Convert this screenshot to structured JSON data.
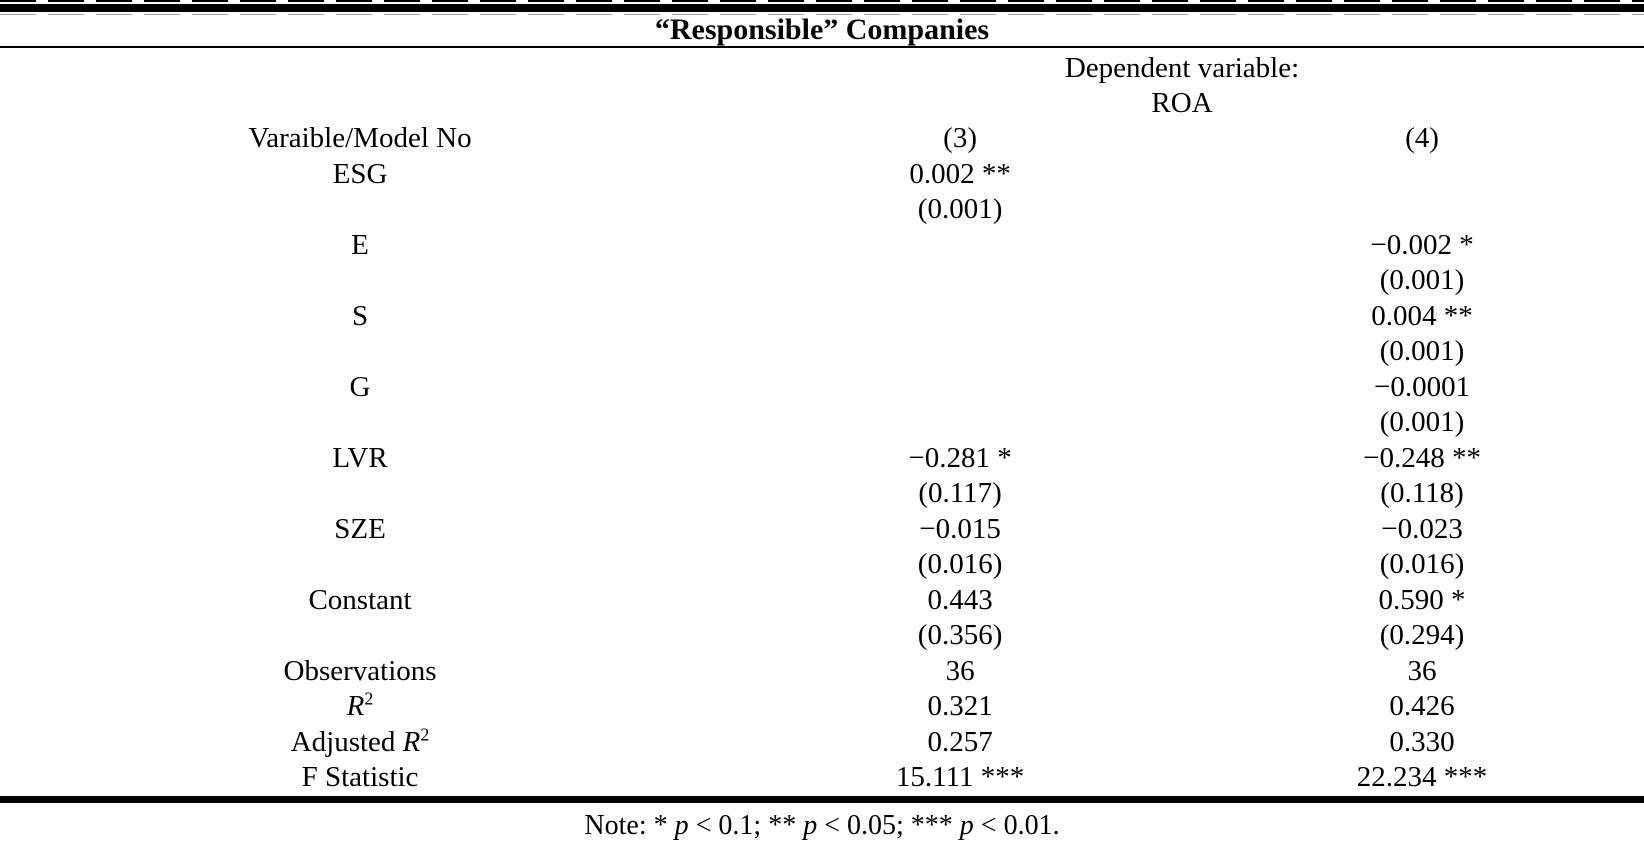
{
  "table": {
    "title": "“Responsible” Companies",
    "header": {
      "dependent_variable_label": "Dependent variable:",
      "dependent_variable": "ROA"
    },
    "columns_row": {
      "label": "Varaible/Model No",
      "model3": "(3)",
      "model4": "(4)"
    },
    "rows": [
      {
        "label": "ESG",
        "m3": "0.002 **",
        "m4": ""
      },
      {
        "label": "",
        "m3": "(0.001)",
        "m4": ""
      },
      {
        "label": "E",
        "m3": "",
        "m4": "−0.002 *"
      },
      {
        "label": "",
        "m3": "",
        "m4": "(0.001)"
      },
      {
        "label": "S",
        "m3": "",
        "m4": "0.004 **"
      },
      {
        "label": "",
        "m3": "",
        "m4": "(0.001)"
      },
      {
        "label": "G",
        "m3": "",
        "m4": "−0.0001"
      },
      {
        "label": "",
        "m3": "",
        "m4": "(0.001)"
      },
      {
        "label": "LVR",
        "m3": "−0.281 *",
        "m4": "−0.248 **"
      },
      {
        "label": "",
        "m3": "(0.117)",
        "m4": "(0.118)"
      },
      {
        "label": "SZE",
        "m3": "−0.015",
        "m4": "−0.023"
      },
      {
        "label": "",
        "m3": "(0.016)",
        "m4": "(0.016)"
      },
      {
        "label": "Constant",
        "m3": "0.443",
        "m4": "0.590 *"
      },
      {
        "label": "",
        "m3": "(0.356)",
        "m4": "(0.294)"
      },
      {
        "label": "Observations",
        "m3": "36",
        "m4": "36"
      },
      {
        "label": {
          "pre": "",
          "it": "R",
          "sup": "2"
        },
        "m3": "0.321",
        "m4": "0.426"
      },
      {
        "label": {
          "pre": "Adjusted ",
          "it": "R",
          "sup": "2"
        },
        "m3": "0.257",
        "m4": "0.330"
      },
      {
        "label": "F Statistic",
        "m3": "15.111 ***",
        "m4": "22.234 ***"
      }
    ],
    "note_segments": [
      {
        "t": "Note: * "
      },
      {
        "t": "p",
        "i": true
      },
      {
        "t": " < 0.1; ** "
      },
      {
        "t": "p",
        "i": true
      },
      {
        "t": " < 0.05; *** "
      },
      {
        "t": "p",
        "i": true
      },
      {
        "t": " < 0.01."
      }
    ]
  },
  "colors": {
    "text": "#000000",
    "background": "#ffffff"
  }
}
